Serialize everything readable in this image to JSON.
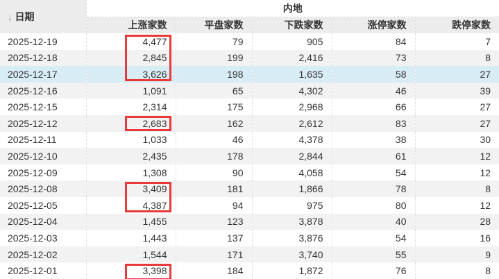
{
  "table": {
    "region_header": "内地",
    "sort_icon": "↓",
    "columns": [
      "日期",
      "上涨家数",
      "平盘家数",
      "下跌家数",
      "涨停家数",
      "跌停家数"
    ],
    "rows": [
      {
        "date": "2025-12-19",
        "up": "4,477",
        "flat": "79",
        "down": "905",
        "limit_up": "84",
        "limit_down": "7",
        "box": "top",
        "highlight": false
      },
      {
        "date": "2025-12-18",
        "up": "2,845",
        "flat": "199",
        "down": "2,416",
        "limit_up": "73",
        "limit_down": "8",
        "box": "mid",
        "highlight": false
      },
      {
        "date": "2025-12-17",
        "up": "3,626",
        "flat": "198",
        "down": "1,635",
        "limit_up": "58",
        "limit_down": "27",
        "box": "bot",
        "highlight": true
      },
      {
        "date": "2025-12-16",
        "up": "1,091",
        "flat": "65",
        "down": "4,302",
        "limit_up": "46",
        "limit_down": "39",
        "box": "",
        "highlight": false
      },
      {
        "date": "2025-12-15",
        "up": "2,314",
        "flat": "175",
        "down": "2,968",
        "limit_up": "66",
        "limit_down": "27",
        "box": "",
        "highlight": false
      },
      {
        "date": "2025-12-12",
        "up": "2,683",
        "flat": "162",
        "down": "2,612",
        "limit_up": "83",
        "limit_down": "27",
        "box": "single",
        "highlight": false
      },
      {
        "date": "2025-12-11",
        "up": "1,033",
        "flat": "46",
        "down": "4,378",
        "limit_up": "38",
        "limit_down": "30",
        "box": "",
        "highlight": false
      },
      {
        "date": "2025-12-10",
        "up": "2,435",
        "flat": "178",
        "down": "2,844",
        "limit_up": "61",
        "limit_down": "12",
        "box": "",
        "highlight": false
      },
      {
        "date": "2025-12-09",
        "up": "1,308",
        "flat": "90",
        "down": "4,058",
        "limit_up": "54",
        "limit_down": "12",
        "box": "",
        "highlight": false
      },
      {
        "date": "2025-12-08",
        "up": "3,409",
        "flat": "181",
        "down": "1,866",
        "limit_up": "78",
        "limit_down": "8",
        "box": "top",
        "highlight": false
      },
      {
        "date": "2025-12-05",
        "up": "4,387",
        "flat": "94",
        "down": "975",
        "limit_up": "80",
        "limit_down": "12",
        "box": "bot",
        "highlight": false
      },
      {
        "date": "2025-12-04",
        "up": "1,455",
        "flat": "123",
        "down": "3,878",
        "limit_up": "40",
        "limit_down": "28",
        "box": "",
        "highlight": false
      },
      {
        "date": "2025-12-03",
        "up": "1,443",
        "flat": "137",
        "down": "3,876",
        "limit_up": "54",
        "limit_down": "16",
        "box": "",
        "highlight": false
      },
      {
        "date": "2025-12-02",
        "up": "1,544",
        "flat": "171",
        "down": "3,740",
        "limit_up": "55",
        "limit_down": "9",
        "box": "",
        "highlight": false
      },
      {
        "date": "2025-12-01",
        "up": "3,398",
        "flat": "184",
        "down": "1,872",
        "limit_up": "76",
        "limit_down": "8",
        "box": "cut",
        "highlight": false
      }
    ],
    "colors": {
      "header_bg": "#ececec",
      "stripe_row": "#f2f2f2",
      "highlight_row": "#d8ecf6",
      "annotation_red": "#e8393b"
    }
  }
}
